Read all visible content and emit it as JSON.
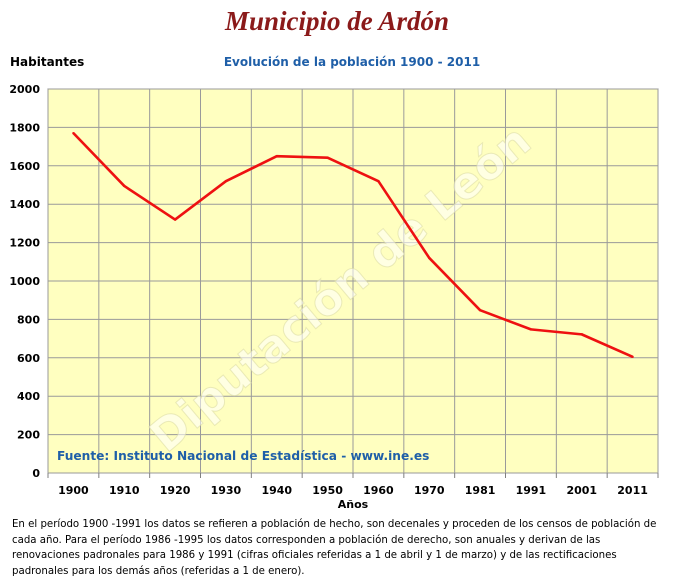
{
  "header": {
    "title": "Municipio de Ardón",
    "subtitle": "Evolución de la población 1900 - 2011"
  },
  "chart_data": {
    "type": "line",
    "title": "Evolución de la población 1900 - 2011",
    "ylabel": "Habitantes",
    "xlabel": "Años",
    "categories": [
      "1900",
      "1910",
      "1920",
      "1930",
      "1940",
      "1950",
      "1960",
      "1970",
      "1981",
      "1991",
      "2001",
      "2011"
    ],
    "series": [
      {
        "values": [
          1770,
          1495,
          1320,
          1520,
          1650,
          1642,
          1520,
          1120,
          848,
          748,
          722,
          605
        ],
        "color": "#ee1111"
      }
    ],
    "ylim": [
      0,
      2000
    ],
    "yticks": [
      0,
      200,
      400,
      600,
      800,
      1000,
      1200,
      1400,
      1600,
      1800,
      2000
    ],
    "grid": true,
    "plot_background": "#ffffc0",
    "source": "Fuente: Instituto Nacional de Estadística - www.ine.es",
    "watermark": "Diputación de León"
  },
  "footnote": "En el período 1900 -1991 los datos se refieren a población de hecho, son decenales y proceden de los censos de población de cada año. Para el período 1986 -1995 los datos corresponden a población de derecho, son anuales y derivan de las renovaciones padronales para 1986 y 1991 (cifras oficiales referidas a 1 de abril y 1 de marzo) y de las rectificaciones padronales para los demás años (referidas a 1 de enero)."
}
